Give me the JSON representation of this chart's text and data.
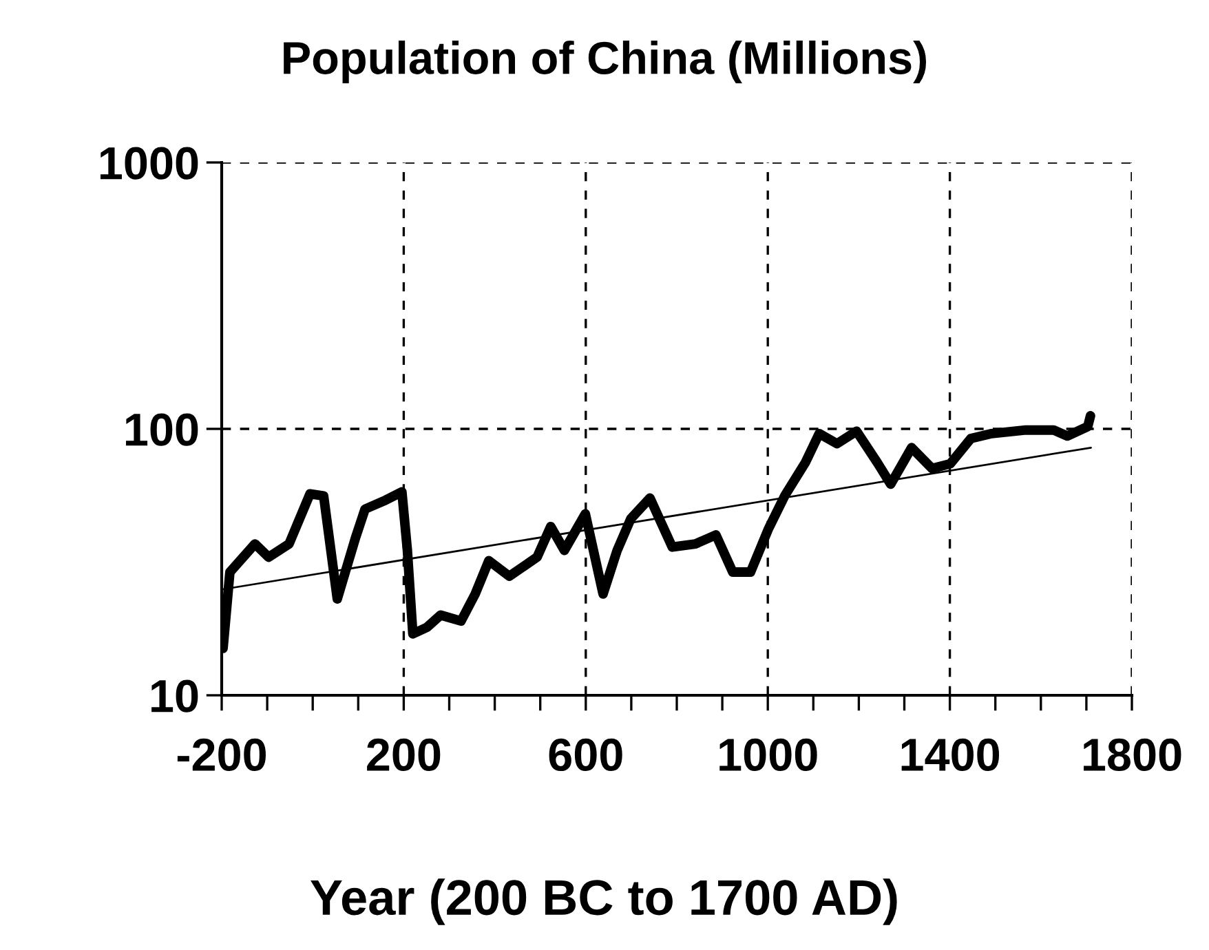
{
  "chart_data": {
    "type": "line",
    "title": "Population of China (Millions)",
    "xlabel": "Year (200 BC to 1700 AD)",
    "log": "y",
    "grid": true,
    "xlim": [
      -200,
      1800
    ],
    "ylim": [
      10,
      1000
    ],
    "yticks": [
      10,
      100,
      1000
    ],
    "xticks": [
      -200,
      {
        "value": -100,
        "label": null
      },
      {
        "value": 0,
        "label": null
      },
      {
        "value": 100,
        "label": null
      },
      200,
      {
        "value": 300,
        "label": null
      },
      {
        "value": 400,
        "label": null
      },
      {
        "value": 500,
        "label": null
      },
      600,
      {
        "value": 700,
        "label": null
      },
      {
        "value": 800,
        "label": null
      },
      {
        "value": 900,
        "label": null
      },
      1000,
      {
        "value": 1100,
        "label": null
      },
      {
        "value": 1200,
        "label": null
      },
      {
        "value": 1300,
        "label": null
      },
      1400,
      {
        "value": 1500,
        "label": null
      },
      {
        "value": 1600,
        "label": null
      },
      {
        "value": 1700,
        "label": null
      },
      1800
    ],
    "series": [
      {
        "color": "#000000",
        "x": [
          -197,
          -182,
          -127,
          -97,
          -52,
          -6,
          24,
          54,
          94,
          115,
          160,
          196,
          208,
          220,
          251,
          281,
          326,
          357,
          387,
          432,
          493,
          523,
          553,
          599,
          638,
          669,
          699,
          741,
          790,
          841,
          886,
          923,
          962,
          1001,
          1037,
          1083,
          1113,
          1152,
          1195,
          1240,
          1270,
          1316,
          1361,
          1401,
          1446,
          1492,
          1567,
          1628,
          1658,
          1703,
          1709
        ],
        "values": [
          15,
          29,
          37,
          33,
          37,
          57,
          56,
          23,
          39,
          50,
          54,
          58,
          35,
          17,
          18,
          20,
          19,
          24,
          32,
          28,
          33,
          43,
          35,
          48,
          24,
          35,
          46,
          55,
          36,
          37,
          40,
          29,
          29,
          42,
          56,
          75,
          96,
          88,
          98,
          75,
          62,
          85,
          71,
          74,
          92,
          96,
          99,
          99,
          94,
          102,
          112
        ]
      },
      {
        "type": "line",
        "color": "#000000",
        "x": [
          -197,
          1710
        ],
        "values": [
          25,
          85
        ]
      }
    ]
  }
}
